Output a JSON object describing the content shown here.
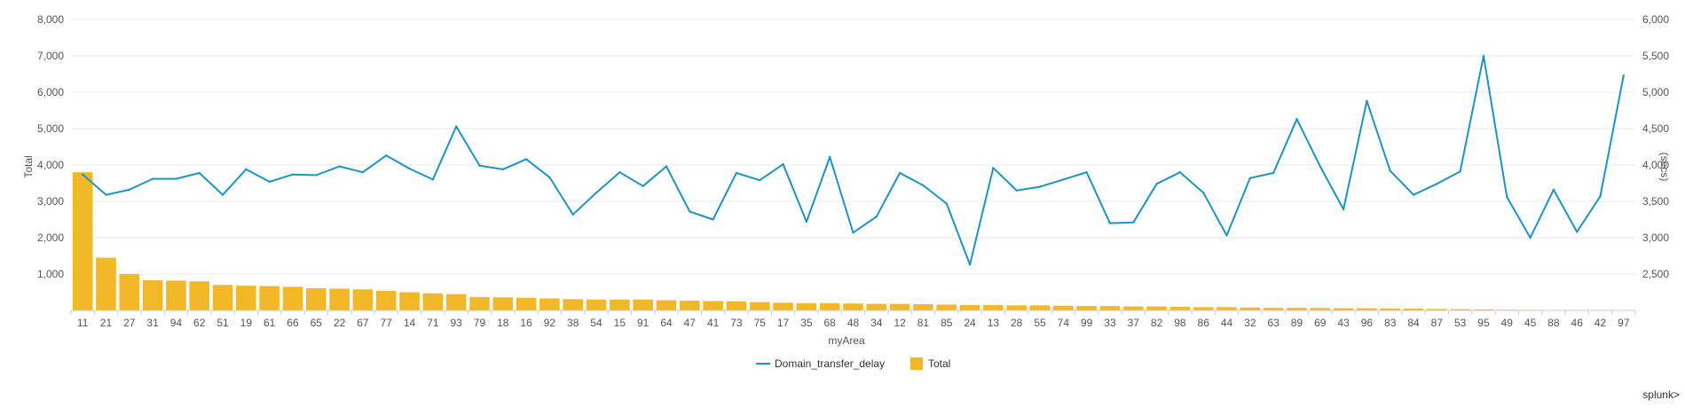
{
  "brand": "splunk>",
  "chart_data": {
    "type": "bar",
    "title": "",
    "xlabel": "myArea",
    "ylabel": "Total",
    "y2label": "(secs)",
    "ylim": [
      0,
      8000
    ],
    "y2lim": [
      2000,
      6000
    ],
    "yticks": [
      "1,000",
      "2,000",
      "3,000",
      "4,000",
      "5,000",
      "6,000",
      "7,000",
      "8,000"
    ],
    "y2ticks": [
      "2,500",
      "3,000",
      "3,500",
      "4,000",
      "4,500",
      "5,000",
      "5,500",
      "6,000"
    ],
    "grid": true,
    "legend_position": "bottom",
    "legend": [
      "Domain_transfer_delay",
      "Total"
    ],
    "categories": [
      "11",
      "21",
      "27",
      "31",
      "94",
      "62",
      "51",
      "19",
      "61",
      "66",
      "65",
      "22",
      "67",
      "77",
      "14",
      "71",
      "93",
      "79",
      "18",
      "16",
      "92",
      "38",
      "54",
      "15",
      "91",
      "64",
      "47",
      "41",
      "73",
      "75",
      "17",
      "35",
      "68",
      "48",
      "34",
      "12",
      "81",
      "85",
      "24",
      "13",
      "28",
      "55",
      "74",
      "99",
      "33",
      "37",
      "82",
      "98",
      "86",
      "44",
      "32",
      "63",
      "89",
      "69",
      "43",
      "96",
      "83",
      "84",
      "87",
      "53",
      "95",
      "49",
      "45",
      "88",
      "46",
      "42",
      "97"
    ],
    "series": [
      {
        "name": "Total",
        "type": "bar",
        "axis": "left",
        "color": "#f2b827",
        "values": [
          3800,
          1450,
          1000,
          830,
          820,
          800,
          700,
          680,
          670,
          650,
          610,
          600,
          580,
          540,
          500,
          470,
          450,
          370,
          360,
          350,
          330,
          310,
          300,
          300,
          300,
          280,
          270,
          260,
          250,
          230,
          210,
          200,
          200,
          190,
          180,
          180,
          170,
          160,
          150,
          150,
          140,
          140,
          130,
          120,
          120,
          110,
          110,
          100,
          90,
          90,
          80,
          70,
          70,
          65,
          60,
          60,
          55,
          50,
          40,
          35,
          30,
          20,
          15,
          5,
          5,
          0,
          0
        ]
      },
      {
        "name": "Domain_transfer_delay",
        "type": "line",
        "axis": "right",
        "color": "#1e93c6",
        "values": [
          3870,
          3590,
          3660,
          3810,
          3810,
          3890,
          3590,
          3940,
          3770,
          3870,
          3860,
          3980,
          3900,
          4130,
          3950,
          3800,
          4530,
          3990,
          3940,
          4080,
          3830,
          3320,
          3620,
          3900,
          3710,
          3980,
          3360,
          3250,
          3890,
          3790,
          4010,
          3220,
          4110,
          3070,
          3290,
          3890,
          3720,
          3470,
          2630,
          3960,
          3650,
          3700,
          3800,
          3900,
          3200,
          3210,
          3740,
          3900,
          3620,
          3030,
          3820,
          3890,
          4630,
          3980,
          3390,
          4880,
          3920,
          3590,
          3740,
          3910,
          5500,
          3560,
          3000,
          3660,
          3080,
          3570,
          5230
        ]
      }
    ]
  }
}
